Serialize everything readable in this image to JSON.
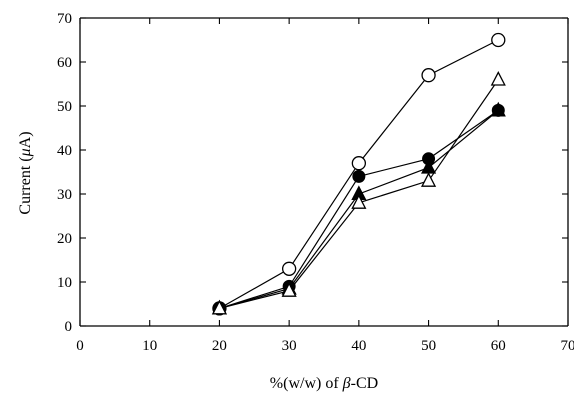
{
  "chart_data": {
    "type": "line",
    "title": "",
    "xlabel_parts": [
      "%(w/w) of ",
      "β",
      "-CD"
    ],
    "ylabel_parts": [
      "Current (",
      "μ",
      "A)"
    ],
    "xlim": [
      0,
      70
    ],
    "ylim": [
      0,
      70
    ],
    "xticks": [
      0,
      10,
      20,
      30,
      40,
      50,
      60,
      70
    ],
    "yticks": [
      0,
      10,
      20,
      30,
      40,
      50,
      60,
      70
    ],
    "grid": false,
    "series": [
      {
        "marker": "open-circle",
        "x": [
          20,
          30,
          40,
          50,
          60
        ],
        "y": [
          4,
          13,
          37,
          57,
          65
        ]
      },
      {
        "marker": "filled-circle",
        "x": [
          20,
          30,
          40,
          50,
          60
        ],
        "y": [
          4,
          9,
          34,
          38,
          49
        ]
      },
      {
        "marker": "filled-triangle",
        "x": [
          20,
          30,
          40,
          50,
          60
        ],
        "y": [
          4,
          8.5,
          30,
          36,
          49
        ]
      },
      {
        "marker": "open-triangle",
        "x": [
          20,
          30,
          40,
          50,
          60
        ],
        "y": [
          4,
          8,
          28,
          33,
          56
        ]
      }
    ]
  }
}
